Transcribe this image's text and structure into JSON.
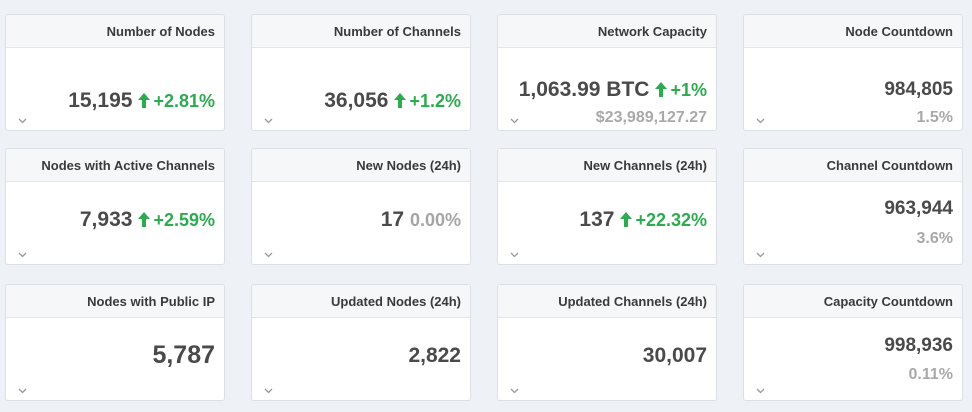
{
  "cards": [
    {
      "title": "Number of Nodes",
      "value": "15,195",
      "change": "+2.81%",
      "trend": "up"
    },
    {
      "title": "Number of Channels",
      "value": "36,056",
      "change": "+1.2%",
      "trend": "up"
    },
    {
      "title": "Network Capacity",
      "value": "1,063.99 BTC",
      "change": "+1%",
      "trend": "up",
      "sub": "$23,989,127.27"
    },
    {
      "title": "Node Countdown",
      "value": "984,805",
      "sub": "1.5%"
    },
    {
      "title": "Nodes with Active Channels",
      "value": "7,933",
      "change": "+2.59%",
      "trend": "up"
    },
    {
      "title": "New Nodes (24h)",
      "value": "17",
      "change": "0.00%",
      "trend": "flat"
    },
    {
      "title": "New Channels (24h)",
      "value": "137",
      "change": "+22.32%",
      "trend": "up"
    },
    {
      "title": "Channel Countdown",
      "value": "963,944",
      "sub": "3.6%"
    },
    {
      "title": "Nodes with Public IP",
      "value": "5,787"
    },
    {
      "title": "Updated Nodes (24h)",
      "value": "2,822"
    },
    {
      "title": "Updated Channels (24h)",
      "value": "30,007"
    },
    {
      "title": "Capacity Countdown",
      "value": "998,936",
      "sub": "0.11%"
    }
  ],
  "colors": {
    "up": "#2eaa50",
    "flat": "#a5a5a5",
    "muted": "#a9a9a9"
  },
  "icons": {
    "trend": "arrow-up-icon",
    "expand": "chevron-down-icon"
  }
}
